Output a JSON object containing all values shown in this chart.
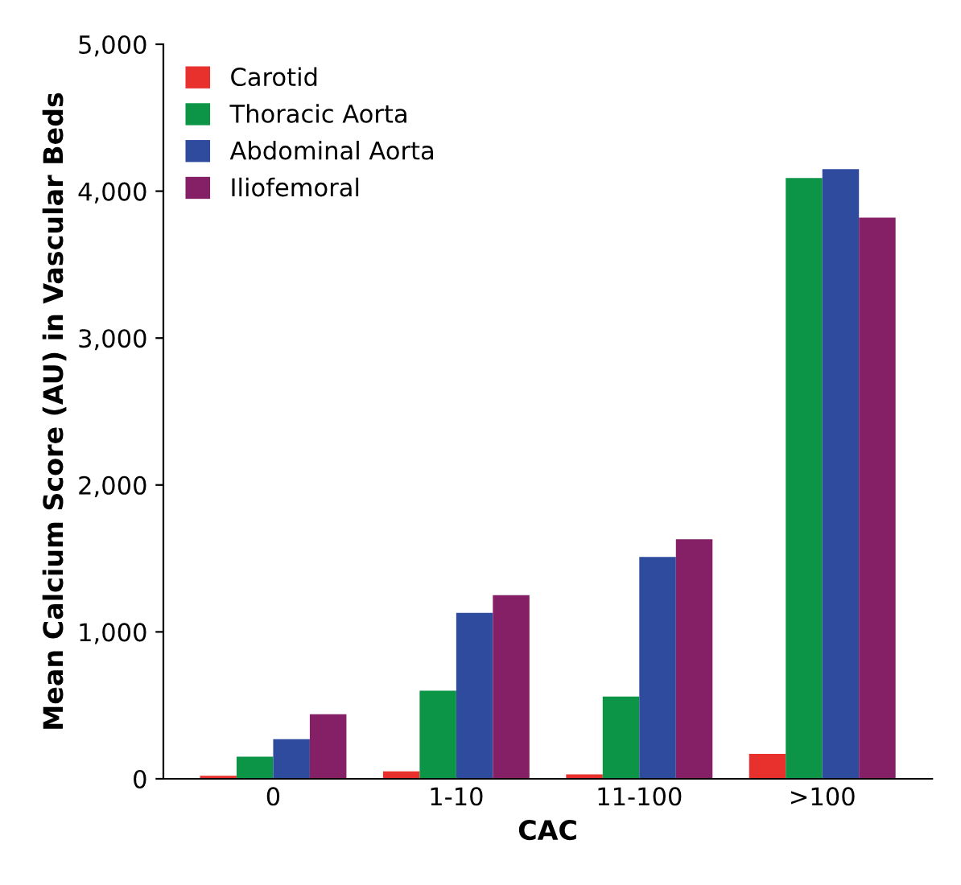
{
  "chart_data": {
    "type": "bar",
    "xlabel": "CAC",
    "ylabel": "Mean Calcium Score (AU) in Vascular Beds",
    "categories": [
      "0",
      "1-10",
      "11-100",
      ">100"
    ],
    "series": [
      {
        "name": "Carotid",
        "color": "#e8302d",
        "values": [
          20,
          50,
          30,
          170
        ]
      },
      {
        "name": "Thoracic Aorta",
        "color": "#0c9447",
        "values": [
          150,
          600,
          560,
          4090
        ]
      },
      {
        "name": "Abdominal Aorta",
        "color": "#2e4b9e",
        "values": [
          270,
          1130,
          1510,
          4150
        ]
      },
      {
        "name": "Iliofemoral",
        "color": "#852066",
        "values": [
          440,
          1250,
          1630,
          3820
        ]
      }
    ],
    "ylim": [
      0,
      5000
    ],
    "yticks": [
      0,
      {
        "value": 1000,
        "label": "1,000"
      },
      {
        "value": 2000,
        "label": "2,000"
      },
      {
        "value": 3000,
        "label": "3,000"
      },
      {
        "value": 4000,
        "label": "4,000"
      },
      {
        "value": 5000,
        "label": "5,000"
      }
    ],
    "legend": "top left",
    "grid": false
  }
}
